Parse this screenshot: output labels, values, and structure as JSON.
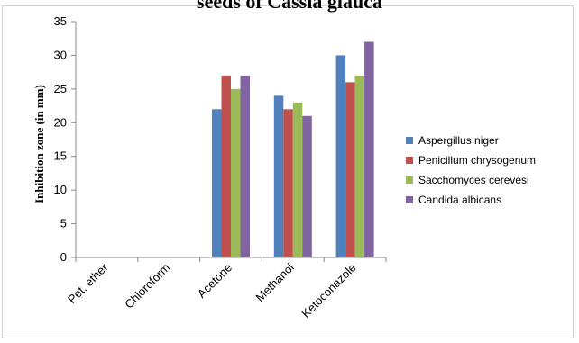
{
  "chart_data": {
    "type": "bar",
    "title": "seeds of Cassia glauca",
    "xlabel": "",
    "ylabel": "Inhibition zone (in mm)",
    "categories": [
      "Pet. ether",
      "Chloroform",
      "Acetone",
      "Methanol",
      "Ketoconazole"
    ],
    "ylim": [
      0,
      35
    ],
    "yticks": [
      0,
      5,
      10,
      15,
      20,
      25,
      30,
      35
    ],
    "grid": false,
    "legend_position": "right",
    "series": [
      {
        "name": "Aspergillus niger",
        "color": "#4F81BD",
        "values": [
          0,
          0,
          22,
          24,
          30
        ]
      },
      {
        "name": "Penicillum  chrysogenum",
        "color": "#C0504D",
        "values": [
          0,
          0,
          27,
          22,
          26
        ]
      },
      {
        "name": "Sacchomyces cerevesi",
        "color": "#9BBB59",
        "values": [
          0,
          0,
          25,
          23,
          27
        ]
      },
      {
        "name": "Candida albicans",
        "color": "#8064A2",
        "values": [
          0,
          0,
          27,
          21,
          32
        ]
      }
    ]
  }
}
